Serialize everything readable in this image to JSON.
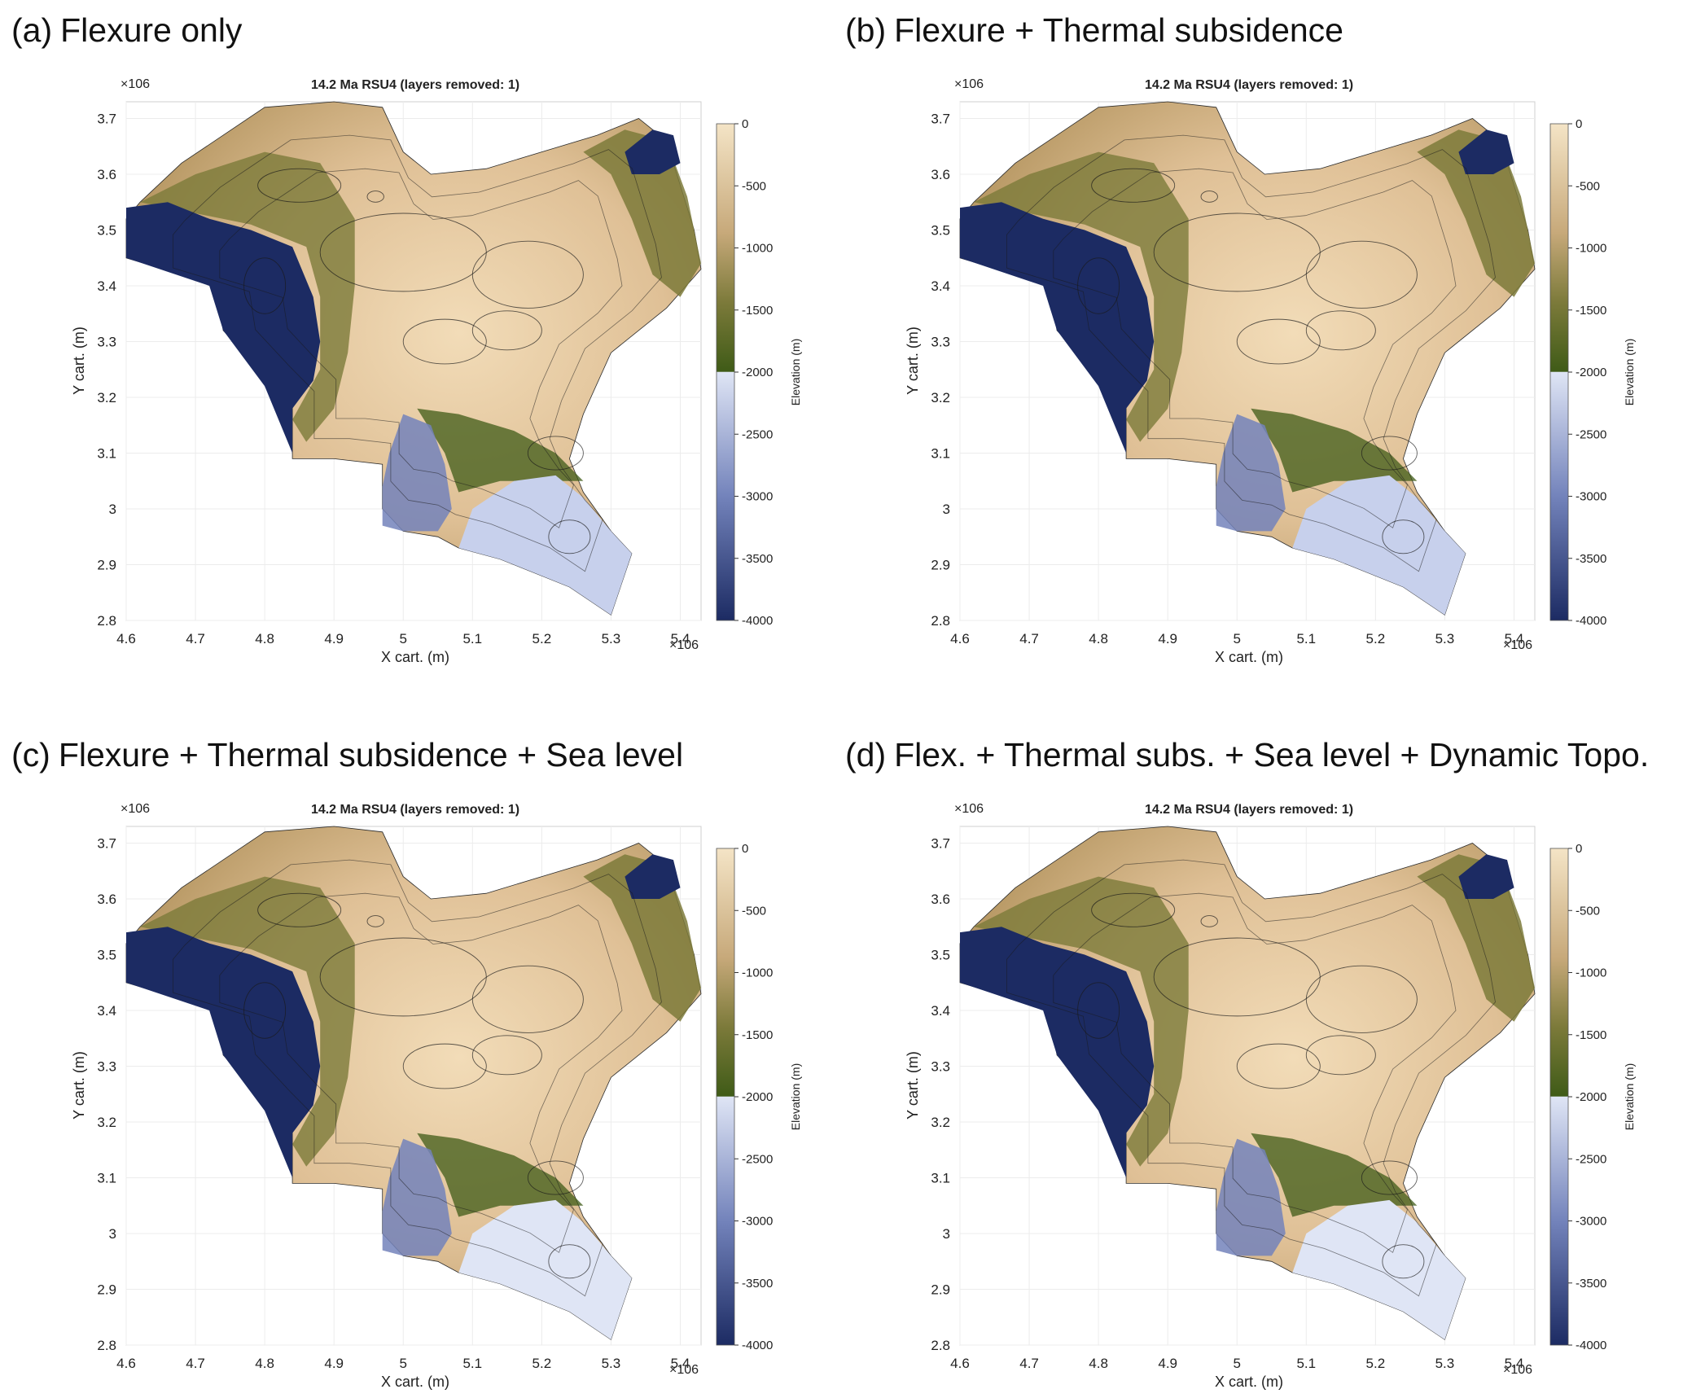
{
  "panels": [
    {
      "letter": "(a)",
      "title": "Flexure only"
    },
    {
      "letter": "(b)",
      "title": "Flexure + Thermal subsidence"
    },
    {
      "letter": "(c)",
      "title": "Flexure + Thermal subsidence + Sea level"
    },
    {
      "letter": "(d)",
      "title": "Flex. + Thermal subs. + Sea level + Dynamic Topo."
    }
  ],
  "chart_data": [
    {
      "type": "heatmap",
      "panel": "a",
      "title": "14.2 Ma   RSU4      (layers removed: 1)",
      "xlabel": "X cart. (m)",
      "ylabel": "Y cart. (m)",
      "x_exponent": "×10^6",
      "y_exponent": "×10^6",
      "xlim": [
        4.6,
        5.43
      ],
      "ylim": [
        2.8,
        3.73
      ],
      "xticks": [
        "4.6",
        "4.7",
        "4.8",
        "4.9",
        "5",
        "5.1",
        "5.2",
        "5.3",
        "5.4"
      ],
      "yticks": [
        "2.8",
        "2.9",
        "3",
        "3.1",
        "3.2",
        "3.3",
        "3.4",
        "3.5",
        "3.6",
        "3.7"
      ],
      "colorbar": {
        "label": "Elevation (m)",
        "range": [
          -4000,
          0
        ],
        "ticks": [
          "0",
          "-500",
          "-1000",
          "-1500",
          "-2000",
          "-2500",
          "-3000",
          "-3500",
          "-4000"
        ]
      },
      "grid": true
    },
    {
      "type": "heatmap",
      "panel": "b",
      "title": "14.2 Ma   RSU4      (layers removed: 1)",
      "xlabel": "X cart. (m)",
      "ylabel": "Y cart. (m)",
      "x_exponent": "×10^6",
      "y_exponent": "×10^6",
      "xlim": [
        4.6,
        5.43
      ],
      "ylim": [
        2.8,
        3.73
      ],
      "xticks": [
        "4.6",
        "4.7",
        "4.8",
        "4.9",
        "5",
        "5.1",
        "5.2",
        "5.3",
        "5.4"
      ],
      "yticks": [
        "2.8",
        "2.9",
        "3",
        "3.1",
        "3.2",
        "3.3",
        "3.4",
        "3.5",
        "3.6",
        "3.7"
      ],
      "colorbar": {
        "label": "Elevation (m)",
        "range": [
          -4000,
          0
        ],
        "ticks": [
          "0",
          "-500",
          "-1000",
          "-1500",
          "-2000",
          "-2500",
          "-3000",
          "-3500",
          "-4000"
        ]
      },
      "grid": true
    },
    {
      "type": "heatmap",
      "panel": "c",
      "title": "14.2 Ma   RSU4      (layers removed: 1)",
      "xlabel": "X cart. (m)",
      "ylabel": "Y cart. (m)",
      "x_exponent": "×10^6",
      "y_exponent": "×10^6",
      "xlim": [
        4.6,
        5.43
      ],
      "ylim": [
        2.8,
        3.73
      ],
      "xticks": [
        "4.6",
        "4.7",
        "4.8",
        "4.9",
        "5",
        "5.1",
        "5.2",
        "5.3",
        "5.4"
      ],
      "yticks": [
        "2.8",
        "2.9",
        "3",
        "3.1",
        "3.2",
        "3.3",
        "3.4",
        "3.5",
        "3.6",
        "3.7"
      ],
      "colorbar": {
        "label": "Elevation (m)",
        "range": [
          -4000,
          0
        ],
        "ticks": [
          "0",
          "-500",
          "-1000",
          "-1500",
          "-2000",
          "-2500",
          "-3000",
          "-3500",
          "-4000"
        ]
      },
      "grid": true
    },
    {
      "type": "heatmap",
      "panel": "d",
      "title": "14.2 Ma   RSU4      (layers removed: 1)",
      "xlabel": "X cart. (m)",
      "ylabel": "Y cart. (m)",
      "x_exponent": "×10^6",
      "y_exponent": "×10^6",
      "xlim": [
        4.6,
        5.43
      ],
      "ylim": [
        2.8,
        3.73
      ],
      "xticks": [
        "4.6",
        "4.7",
        "4.8",
        "4.9",
        "5",
        "5.1",
        "5.2",
        "5.3",
        "5.4"
      ],
      "yticks": [
        "2.8",
        "2.9",
        "3",
        "3.1",
        "3.2",
        "3.3",
        "3.4",
        "3.5",
        "3.6",
        "3.7"
      ],
      "colorbar": {
        "label": "Elevation (m)",
        "range": [
          -4000,
          0
        ],
        "ticks": [
          "0",
          "-500",
          "-1000",
          "-1500",
          "-2000",
          "-2500",
          "-3000",
          "-3500",
          "-4000"
        ]
      },
      "grid": true
    }
  ],
  "colors": {
    "shallow": "#f4e4c6",
    "mid": "#c7a97a",
    "olive": "#7c7a3a",
    "green": "#3f5b17",
    "light_blue": "#dfe5f5",
    "mid_blue": "#7383bb",
    "deep_blue": "#1c2b63",
    "contour": "#1a1a1a"
  }
}
